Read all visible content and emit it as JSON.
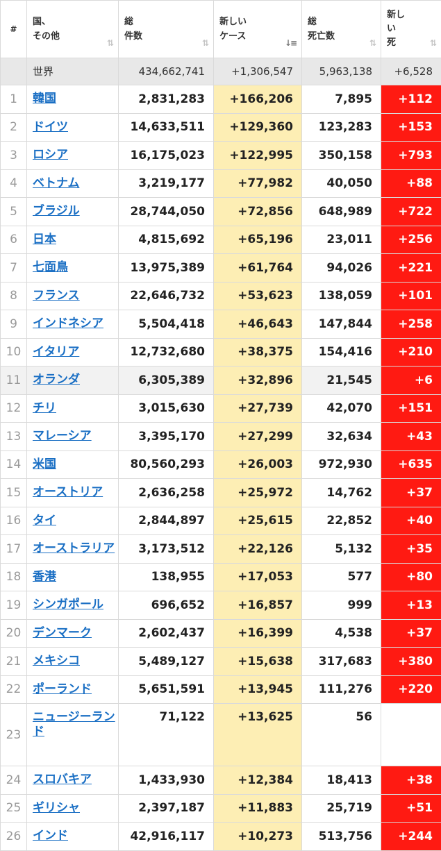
{
  "header": {
    "rank": "#",
    "country_line1": "国、",
    "country_line2": "その他",
    "total_cases_line1": "総",
    "total_cases_line2": "件数",
    "new_cases_line1": "新しい",
    "new_cases_line2": "ケース",
    "total_deaths_line1": "総",
    "total_deaths_line2": "死亡数",
    "new_deaths_line1": "新し",
    "new_deaths_line2": "い",
    "new_deaths_line3": "死",
    "sort_icon": "⇅",
    "sort_active_icon": "↓≡"
  },
  "world": {
    "name": "世界",
    "total_cases": "434,662,741",
    "new_cases": "+1,306,547",
    "total_deaths": "5,963,138",
    "new_deaths": "+6,528"
  },
  "rows": [
    {
      "rank": "1",
      "country": "韓国",
      "total_cases": "2,831,283",
      "new_cases": "+166,206",
      "total_deaths": "7,895",
      "new_deaths": "+112"
    },
    {
      "rank": "2",
      "country": "ドイツ",
      "total_cases": "14,633,511",
      "new_cases": "+129,360",
      "total_deaths": "123,283",
      "new_deaths": "+153"
    },
    {
      "rank": "3",
      "country": "ロシア",
      "total_cases": "16,175,023",
      "new_cases": "+122,995",
      "total_deaths": "350,158",
      "new_deaths": "+793"
    },
    {
      "rank": "4",
      "country": "ベトナム",
      "total_cases": "3,219,177",
      "new_cases": "+77,982",
      "total_deaths": "40,050",
      "new_deaths": "+88"
    },
    {
      "rank": "5",
      "country": "ブラジル",
      "total_cases": "28,744,050",
      "new_cases": "+72,856",
      "total_deaths": "648,989",
      "new_deaths": "+722"
    },
    {
      "rank": "6",
      "country": "日本",
      "total_cases": "4,815,692",
      "new_cases": "+65,196",
      "total_deaths": "23,011",
      "new_deaths": "+256"
    },
    {
      "rank": "7",
      "country": "七面鳥",
      "total_cases": "13,975,389",
      "new_cases": "+61,764",
      "total_deaths": "94,026",
      "new_deaths": "+221"
    },
    {
      "rank": "8",
      "country": "フランス",
      "total_cases": "22,646,732",
      "new_cases": "+53,623",
      "total_deaths": "138,059",
      "new_deaths": "+101"
    },
    {
      "rank": "9",
      "country": "インドネシア",
      "total_cases": "5,504,418",
      "new_cases": "+46,643",
      "total_deaths": "147,844",
      "new_deaths": "+258"
    },
    {
      "rank": "10",
      "country": "イタリア",
      "total_cases": "12,732,680",
      "new_cases": "+38,375",
      "total_deaths": "154,416",
      "new_deaths": "+210"
    },
    {
      "rank": "11",
      "country": "オランダ",
      "total_cases": "6,305,389",
      "new_cases": "+32,896",
      "total_deaths": "21,545",
      "new_deaths": "+6"
    },
    {
      "rank": "12",
      "country": "チリ",
      "total_cases": "3,015,630",
      "new_cases": "+27,739",
      "total_deaths": "42,070",
      "new_deaths": "+151"
    },
    {
      "rank": "13",
      "country": "マレーシア",
      "total_cases": "3,395,170",
      "new_cases": "+27,299",
      "total_deaths": "32,634",
      "new_deaths": "+43"
    },
    {
      "rank": "14",
      "country": "米国",
      "total_cases": "80,560,293",
      "new_cases": "+26,003",
      "total_deaths": "972,930",
      "new_deaths": "+635"
    },
    {
      "rank": "15",
      "country": "オーストリア",
      "total_cases": "2,636,258",
      "new_cases": "+25,972",
      "total_deaths": "14,762",
      "new_deaths": "+37"
    },
    {
      "rank": "16",
      "country": "タイ",
      "total_cases": "2,844,897",
      "new_cases": "+25,615",
      "total_deaths": "22,852",
      "new_deaths": "+40"
    },
    {
      "rank": "17",
      "country": "オーストラリア",
      "total_cases": "3,173,512",
      "new_cases": "+22,126",
      "total_deaths": "5,132",
      "new_deaths": "+35"
    },
    {
      "rank": "18",
      "country": "香港",
      "total_cases": "138,955",
      "new_cases": "+17,053",
      "total_deaths": "577",
      "new_deaths": "+80"
    },
    {
      "rank": "19",
      "country": "シンガポール",
      "total_cases": "696,652",
      "new_cases": "+16,857",
      "total_deaths": "999",
      "new_deaths": "+13"
    },
    {
      "rank": "20",
      "country": "デンマーク",
      "total_cases": "2,602,437",
      "new_cases": "+16,399",
      "total_deaths": "4,538",
      "new_deaths": "+37"
    },
    {
      "rank": "21",
      "country": "メキシコ",
      "total_cases": "5,489,127",
      "new_cases": "+15,638",
      "total_deaths": "317,683",
      "new_deaths": "+380"
    },
    {
      "rank": "22",
      "country": "ポーランド",
      "total_cases": "5,651,591",
      "new_cases": "+13,945",
      "total_deaths": "111,276",
      "new_deaths": "+220"
    },
    {
      "rank": "23",
      "country": "ニュージーランド",
      "total_cases": "71,122",
      "new_cases": "+13,625",
      "total_deaths": "56",
      "new_deaths": ""
    },
    {
      "rank": "24",
      "country": "スロバキア",
      "total_cases": "1,433,930",
      "new_cases": "+12,384",
      "total_deaths": "18,413",
      "new_deaths": "+38"
    },
    {
      "rank": "25",
      "country": "ギリシャ",
      "total_cases": "2,397,187",
      "new_cases": "+11,883",
      "total_deaths": "25,719",
      "new_deaths": "+51"
    },
    {
      "rank": "26",
      "country": "インド",
      "total_cases": "42,916,117",
      "new_cases": "+10,273",
      "total_deaths": "513,756",
      "new_deaths": "+244"
    }
  ]
}
